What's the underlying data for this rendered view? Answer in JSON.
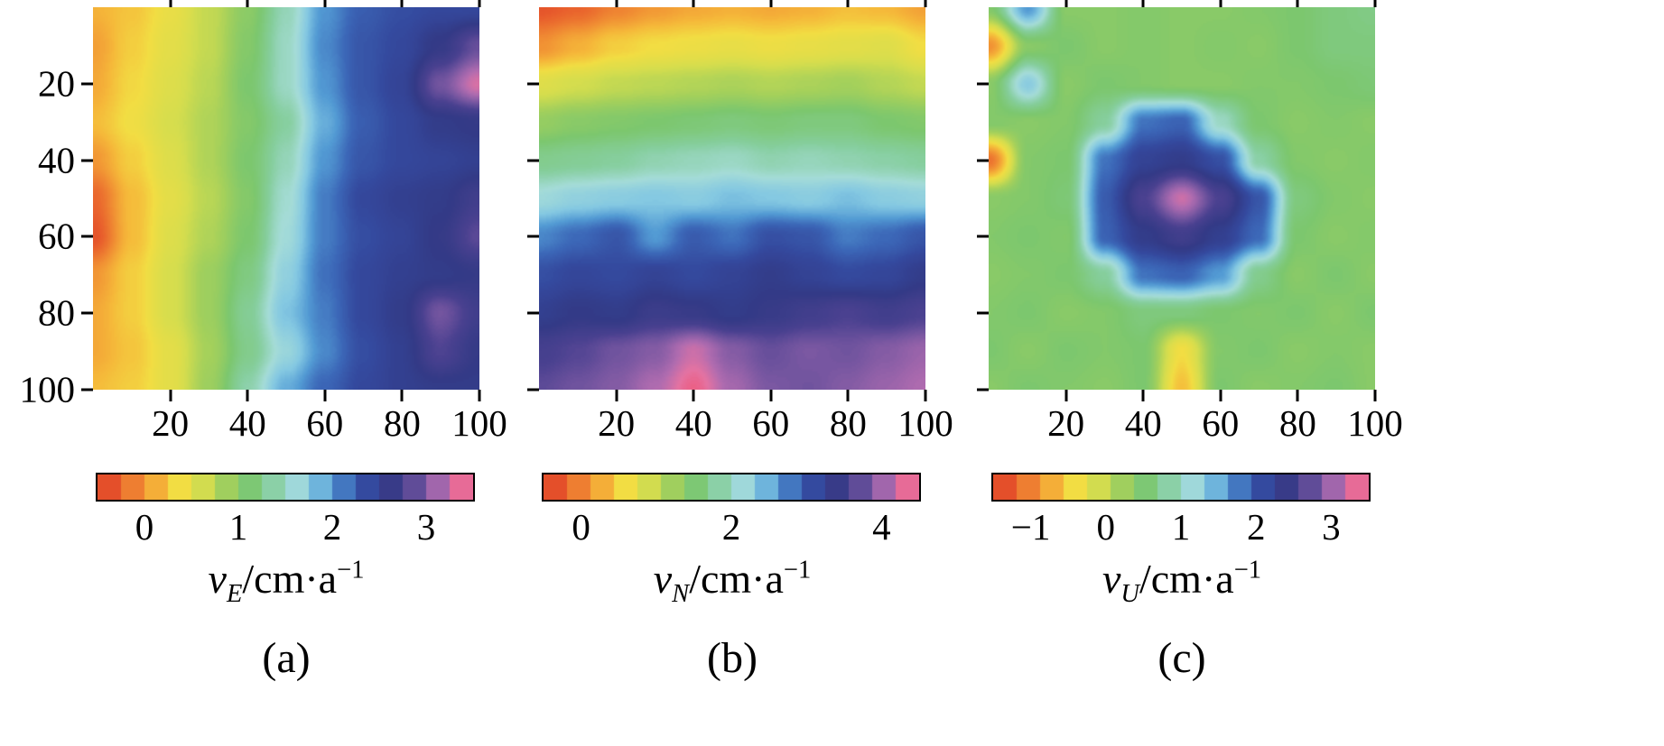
{
  "figure": {
    "background": "#ffffff",
    "colorbar_segments": 16,
    "colormap": [
      {
        "t": 0.0,
        "c": "#dc3a26"
      },
      {
        "t": 0.05,
        "c": "#e85c2c"
      },
      {
        "t": 0.11,
        "c": "#f08a33"
      },
      {
        "t": 0.17,
        "c": "#f5b83a"
      },
      {
        "t": 0.22,
        "c": "#f2dd43"
      },
      {
        "t": 0.28,
        "c": "#d4dd4e"
      },
      {
        "t": 0.34,
        "c": "#a3d05c"
      },
      {
        "t": 0.4,
        "c": "#7cc76e"
      },
      {
        "t": 0.46,
        "c": "#86ce9d"
      },
      {
        "t": 0.52,
        "c": "#a5dcd8"
      },
      {
        "t": 0.57,
        "c": "#84c8e2"
      },
      {
        "t": 0.62,
        "c": "#539bd4"
      },
      {
        "t": 0.67,
        "c": "#3c68b8"
      },
      {
        "t": 0.72,
        "c": "#34499e"
      },
      {
        "t": 0.77,
        "c": "#333a86"
      },
      {
        "t": 0.82,
        "c": "#4a4190"
      },
      {
        "t": 0.87,
        "c": "#7a58a2"
      },
      {
        "t": 0.92,
        "c": "#b06cb0"
      },
      {
        "t": 0.96,
        "c": "#e573a2"
      },
      {
        "t": 1.0,
        "c": "#f04f6e"
      }
    ]
  },
  "chart_data": [
    {
      "type": "heatmap",
      "caption": "(a)",
      "label_var": "v",
      "label_sub": "E",
      "label_unit": "/cm·a",
      "label_sup": "−1",
      "x_range": [
        0,
        100
      ],
      "y_range": [
        0,
        100
      ],
      "x_ticks": [
        20,
        40,
        60,
        80,
        100
      ],
      "y_ticks": [
        20,
        40,
        60,
        80,
        100
      ],
      "show_y_labels": true,
      "colorbar": {
        "min": -0.5,
        "max": 3.5,
        "ticks": [
          {
            "v": 0,
            "label": "0"
          },
          {
            "v": 1,
            "label": "1"
          },
          {
            "v": 2,
            "label": "2"
          },
          {
            "v": 3,
            "label": "3"
          }
        ]
      },
      "values": [
        [
          0.15,
          0.25,
          0.45,
          0.7,
          1.0,
          1.45,
          2.0,
          2.25,
          2.35,
          2.4,
          2.4
        ],
        [
          0.05,
          0.3,
          0.5,
          0.7,
          1.05,
          1.5,
          2.05,
          2.3,
          2.4,
          2.6,
          2.9
        ],
        [
          0.1,
          0.35,
          0.55,
          0.75,
          1.1,
          1.5,
          2.0,
          2.3,
          2.45,
          2.95,
          3.3
        ],
        [
          0.2,
          0.4,
          0.6,
          0.8,
          1.05,
          1.35,
          1.9,
          2.25,
          2.4,
          2.55,
          2.6
        ],
        [
          0.0,
          0.3,
          0.55,
          0.8,
          1.1,
          1.45,
          2.0,
          2.3,
          2.4,
          2.45,
          2.5
        ],
        [
          -0.25,
          0.2,
          0.5,
          0.75,
          1.05,
          1.55,
          2.1,
          2.4,
          2.5,
          2.55,
          2.7
        ],
        [
          -0.35,
          0.2,
          0.55,
          0.8,
          1.1,
          1.6,
          2.1,
          2.35,
          2.45,
          2.6,
          2.85
        ],
        [
          0.0,
          0.3,
          0.6,
          0.9,
          1.2,
          1.7,
          2.15,
          2.4,
          2.5,
          2.55,
          2.6
        ],
        [
          0.1,
          0.3,
          0.6,
          0.9,
          1.3,
          1.8,
          2.1,
          2.4,
          2.55,
          2.95,
          2.7
        ],
        [
          0.1,
          0.25,
          0.5,
          0.85,
          1.25,
          1.65,
          2.05,
          2.35,
          2.5,
          2.8,
          2.6
        ],
        [
          0.2,
          0.3,
          0.5,
          0.9,
          1.4,
          1.9,
          2.2,
          2.4,
          2.5,
          2.55,
          2.55
        ]
      ]
    },
    {
      "type": "heatmap",
      "caption": "(b)",
      "label_var": "v",
      "label_sub": "N",
      "label_unit": "/cm·a",
      "label_sup": "−1",
      "x_range": [
        0,
        100
      ],
      "y_range": [
        0,
        100
      ],
      "x_ticks": [
        20,
        40,
        60,
        80,
        100
      ],
      "y_ticks": [
        20,
        40,
        60,
        80,
        100
      ],
      "show_y_labels": false,
      "colorbar": {
        "min": -0.5,
        "max": 4.5,
        "ticks": [
          {
            "v": 0,
            "label": "0"
          },
          {
            "v": 2,
            "label": "2"
          },
          {
            "v": 4,
            "label": "4"
          }
        ]
      },
      "values": [
        [
          -0.3,
          -0.2,
          0.0,
          0.15,
          0.25,
          0.3,
          0.25,
          0.3,
          0.4,
          0.35,
          0.2
        ],
        [
          0.1,
          0.3,
          0.5,
          0.6,
          0.65,
          0.7,
          0.65,
          0.7,
          0.75,
          0.8,
          0.6
        ],
        [
          0.8,
          0.9,
          1.0,
          1.05,
          1.1,
          1.15,
          1.1,
          1.15,
          1.2,
          1.1,
          1.0
        ],
        [
          1.3,
          1.4,
          1.45,
          1.5,
          1.55,
          1.6,
          1.55,
          1.6,
          1.6,
          1.5,
          1.45
        ],
        [
          1.7,
          1.75,
          1.8,
          1.9,
          1.95,
          2.0,
          1.9,
          1.95,
          1.9,
          1.85,
          1.8
        ],
        [
          2.15,
          2.25,
          2.3,
          2.35,
          2.3,
          2.4,
          2.35,
          2.3,
          2.4,
          2.3,
          2.25
        ],
        [
          2.7,
          2.85,
          3.0,
          2.6,
          2.95,
          2.8,
          3.05,
          3.0,
          2.75,
          2.85,
          3.0
        ],
        [
          3.05,
          3.15,
          3.1,
          3.2,
          3.1,
          3.2,
          3.3,
          3.2,
          3.1,
          3.15,
          3.3
        ],
        [
          3.25,
          3.35,
          3.3,
          3.45,
          3.4,
          3.3,
          3.4,
          3.5,
          3.6,
          3.5,
          3.6
        ],
        [
          3.55,
          3.65,
          3.8,
          3.9,
          4.2,
          3.9,
          3.75,
          3.85,
          3.8,
          3.9,
          4.0
        ],
        [
          3.7,
          3.8,
          3.9,
          4.1,
          4.4,
          4.05,
          3.85,
          3.8,
          3.9,
          4.0,
          4.1
        ]
      ]
    },
    {
      "type": "heatmap",
      "caption": "(c)",
      "label_var": "v",
      "label_sub": "U",
      "label_unit": "/cm·a",
      "label_sup": "−1",
      "x_range": [
        0,
        100
      ],
      "y_range": [
        0,
        100
      ],
      "x_ticks": [
        20,
        40,
        60,
        80,
        100
      ],
      "y_ticks": [
        20,
        40,
        60,
        80,
        100
      ],
      "show_y_labels": false,
      "colorbar": {
        "min": -1.5,
        "max": 3.5,
        "ticks": [
          {
            "v": -1,
            "label": "−1"
          },
          {
            "v": 0,
            "label": "0"
          },
          {
            "v": 1,
            "label": "1"
          },
          {
            "v": 2,
            "label": "2"
          },
          {
            "v": 3,
            "label": "3"
          }
        ]
      },
      "values": [
        [
          0.45,
          1.6,
          0.4,
          0.4,
          0.45,
          0.4,
          0.4,
          0.45,
          0.5,
          0.6,
          0.65
        ],
        [
          -0.9,
          0.4,
          0.5,
          0.4,
          0.45,
          0.4,
          0.45,
          0.4,
          0.5,
          0.6,
          0.6
        ],
        [
          0.4,
          1.3,
          0.4,
          0.5,
          0.45,
          0.4,
          0.4,
          0.45,
          0.45,
          0.5,
          0.55
        ],
        [
          0.45,
          0.4,
          0.45,
          0.8,
          1.8,
          1.9,
          1.0,
          0.5,
          0.4,
          0.45,
          0.4
        ],
        [
          -1.1,
          0.45,
          0.5,
          1.8,
          2.2,
          2.3,
          2.05,
          0.85,
          0.45,
          0.4,
          0.45
        ],
        [
          0.4,
          0.45,
          0.55,
          1.95,
          2.6,
          3.2,
          2.6,
          2.0,
          0.6,
          0.45,
          0.4
        ],
        [
          0.45,
          0.5,
          0.45,
          1.9,
          2.3,
          2.5,
          2.25,
          1.85,
          0.5,
          0.4,
          0.45
        ],
        [
          0.4,
          0.45,
          0.5,
          0.8,
          1.8,
          1.9,
          1.6,
          0.7,
          0.4,
          0.5,
          0.4
        ],
        [
          0.45,
          0.5,
          0.4,
          0.45,
          0.6,
          0.6,
          0.5,
          0.45,
          0.5,
          0.4,
          0.5
        ],
        [
          0.5,
          0.4,
          0.5,
          0.45,
          0.5,
          -0.4,
          0.45,
          0.5,
          0.4,
          0.45,
          0.4
        ],
        [
          0.4,
          0.5,
          0.45,
          0.4,
          0.5,
          -0.6,
          0.5,
          0.4,
          0.45,
          0.5,
          0.4
        ]
      ]
    }
  ]
}
